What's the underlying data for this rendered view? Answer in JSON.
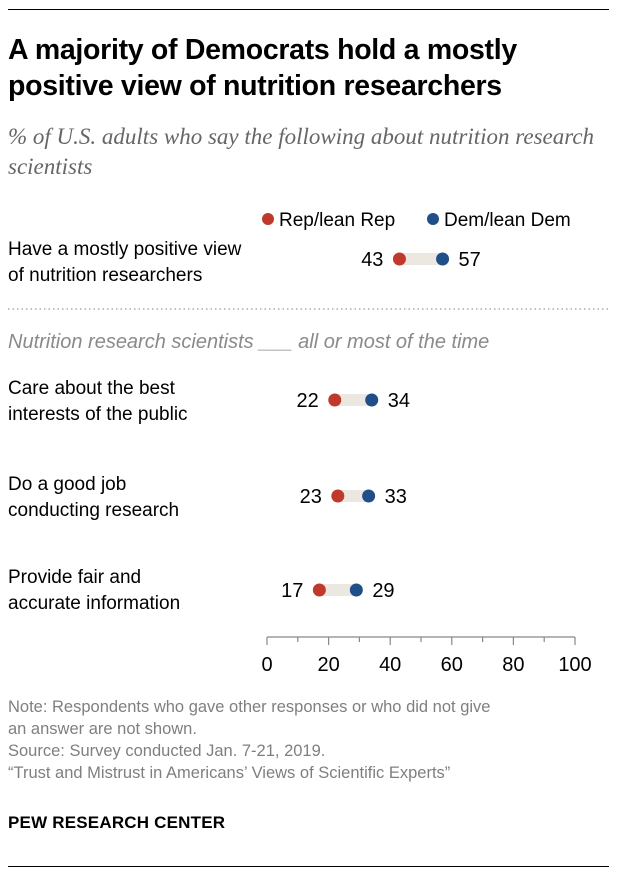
{
  "title": "A majority of Democrats hold a mostly positive view of nutrition researchers",
  "subtitle": "% of U.S. adults who say the following about nutrition research scientists",
  "section_heading": "Nutrition research scientists ___ all or most of the time",
  "colors": {
    "rep": "#bf3a2b",
    "dem": "#1f4e88",
    "connector": "#ece8e1",
    "axis": "#888888",
    "section": "#8a8a8a"
  },
  "chart_data": {
    "type": "dot",
    "title": "A majority of Democrats hold a mostly positive view of nutrition researchers",
    "subtitle": "% of U.S. adults who say the following about nutrition research scientists",
    "series": [
      {
        "name": "Rep/lean Rep",
        "key": "rep",
        "color": "#bf3a2b"
      },
      {
        "name": "Dem/lean Dem",
        "key": "dem",
        "color": "#1f4e88"
      }
    ],
    "items": [
      {
        "label_lines": [
          "Have a mostly positive view",
          "of nutrition researchers"
        ],
        "rep": 43,
        "dem": 57,
        "group": "view"
      },
      {
        "label_lines": [
          "Care about the best",
          "interests of the public"
        ],
        "rep": 22,
        "dem": 34,
        "group": "scientists"
      },
      {
        "label_lines": [
          "Do a good job",
          "conducting research"
        ],
        "rep": 23,
        "dem": 33,
        "group": "scientists"
      },
      {
        "label_lines": [
          "Provide fair and",
          "accurate information"
        ],
        "rep": 17,
        "dem": 29,
        "group": "scientists"
      }
    ],
    "xlim": [
      0,
      100
    ],
    "xticks": [
      0,
      20,
      40,
      60,
      80,
      100
    ],
    "legend_position": "top-right",
    "grid": false
  },
  "notes": {
    "note_line1": "Note: Respondents who gave other responses or who did not give",
    "note_line2": "an answer are not shown.",
    "source": "Source: Survey conducted Jan. 7-21, 2019.",
    "report": "“Trust and Mistrust in Americans’ Views of Scientific Experts”"
  },
  "brand": "PEW RESEARCH CENTER"
}
